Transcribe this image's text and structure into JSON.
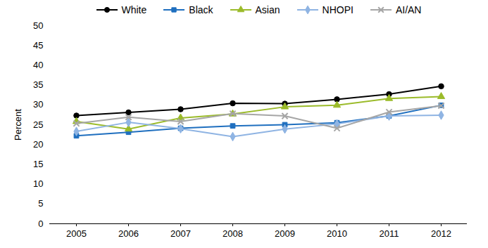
{
  "chart_data": {
    "type": "line",
    "categories": [
      "2005",
      "2006",
      "2007",
      "2008",
      "2009",
      "2010",
      "2011",
      "2012"
    ],
    "y_label": "Percent",
    "ylim": [
      0,
      50
    ],
    "yticks": [
      0,
      5,
      10,
      15,
      20,
      25,
      30,
      35,
      40,
      45,
      50
    ],
    "grid": false,
    "legend": "top",
    "series": [
      {
        "name": "White",
        "color": "#000000",
        "marker": "circle",
        "values": [
          27.3,
          28.1,
          28.9,
          30.4,
          30.3,
          31.4,
          32.7,
          34.7
        ]
      },
      {
        "name": "Black",
        "color": "#1f6fbf",
        "marker": "square",
        "values": [
          22.2,
          23.1,
          24.1,
          24.7,
          25.0,
          25.5,
          27.2,
          29.9
        ]
      },
      {
        "name": "Asian",
        "color": "#9bbb2a",
        "marker": "triangle",
        "values": [
          25.8,
          23.9,
          26.7,
          27.7,
          29.5,
          29.9,
          31.6,
          32.1
        ]
      },
      {
        "name": "NHOPI",
        "color": "#8fb4e3",
        "marker": "diamond",
        "values": [
          23.3,
          25.6,
          24.0,
          22.0,
          23.9,
          25.2,
          27.2,
          27.4
        ]
      },
      {
        "name": "AI/AN",
        "color": "#a6a6a6",
        "marker": "x",
        "values": [
          25.3,
          26.9,
          25.8,
          27.8,
          27.2,
          24.1,
          28.2,
          29.8
        ]
      }
    ]
  }
}
